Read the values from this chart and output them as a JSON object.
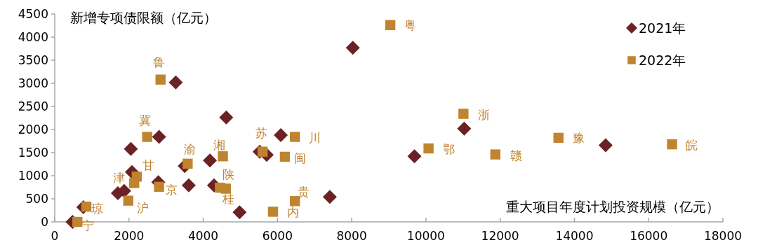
{
  "chart_data": {
    "type": "scatter",
    "ylabel": "新增专项债限额（亿元）",
    "xlabel": "重大项目年度计划投资规模（亿元）",
    "xlim": [
      0,
      18000
    ],
    "xticks": [
      0,
      2000,
      4000,
      6000,
      8000,
      10000,
      12000,
      14000,
      16000,
      18000
    ],
    "ylim": [
      0,
      4500
    ],
    "yticks": [
      0,
      500,
      1000,
      1500,
      2000,
      2500,
      3000,
      3500,
      4000,
      4500
    ],
    "grid": false,
    "legend": "top right",
    "series": [
      {
        "name": "2021年",
        "color": "#6b2224",
        "marker": "diamond",
        "x": [
          480,
          770,
          1700,
          1870,
          2080,
          2050,
          2790,
          2810,
          3260,
          3500,
          3610,
          4180,
          4290,
          4620,
          4980,
          5520,
          5710,
          6090,
          7410,
          8030,
          9690,
          11030,
          14840
        ],
        "values": [
          0,
          320,
          620,
          670,
          1080,
          1580,
          860,
          1840,
          3020,
          1210,
          790,
          1330,
          790,
          2260,
          210,
          1520,
          1450,
          1880,
          540,
          3770,
          1420,
          2020,
          1660
        ]
      },
      {
        "name": "2022年",
        "color": "#c0842f",
        "marker": "square",
        "x": [
          610,
          850,
          1980,
          2140,
          2210,
          2490,
          2810,
          2850,
          3580,
          4450,
          4610,
          4530,
          5600,
          5880,
          6200,
          6470,
          6470,
          9040,
          10070,
          11010,
          11870,
          13570,
          16630
        ],
        "values": [
          0,
          330,
          460,
          840,
          980,
          1840,
          760,
          3080,
          1260,
          740,
          720,
          1420,
          1520,
          220,
          1410,
          1840,
          450,
          4260,
          1590,
          2340,
          1460,
          1820,
          1680
        ]
      }
    ],
    "annotations": [
      {
        "text": "鲁",
        "x": 2850,
        "y": 3080
      },
      {
        "text": "冀",
        "x": 2490,
        "y": 1840
      },
      {
        "text": "甘",
        "x": 2210,
        "y": 980
      },
      {
        "text": "津",
        "x": 2140,
        "y": 840
      },
      {
        "text": "京",
        "x": 2810,
        "y": 760
      },
      {
        "text": "沪",
        "x": 1980,
        "y": 460
      },
      {
        "text": "琼",
        "x": 850,
        "y": 330
      },
      {
        "text": "宁",
        "x": 610,
        "y": 0
      },
      {
        "text": "渝",
        "x": 3580,
        "y": 1260
      },
      {
        "text": "湘",
        "x": 4530,
        "y": 1420
      },
      {
        "text": "陕",
        "x": 4610,
        "y": 720
      },
      {
        "text": "桂",
        "x": 4450,
        "y": 740
      },
      {
        "text": "苏",
        "x": 5600,
        "y": 1520
      },
      {
        "text": "川",
        "x": 6470,
        "y": 1840
      },
      {
        "text": "闽",
        "x": 6200,
        "y": 1410
      },
      {
        "text": "贵",
        "x": 6470,
        "y": 450
      },
      {
        "text": "内",
        "x": 5880,
        "y": 220
      },
      {
        "text": "粤",
        "x": 9040,
        "y": 4260
      },
      {
        "text": "浙",
        "x": 11010,
        "y": 2340
      },
      {
        "text": "鄂",
        "x": 10070,
        "y": 1590
      },
      {
        "text": "赣",
        "x": 11870,
        "y": 1460
      },
      {
        "text": "豫",
        "x": 13570,
        "y": 1820
      },
      {
        "text": "皖",
        "x": 16630,
        "y": 1680
      }
    ]
  }
}
